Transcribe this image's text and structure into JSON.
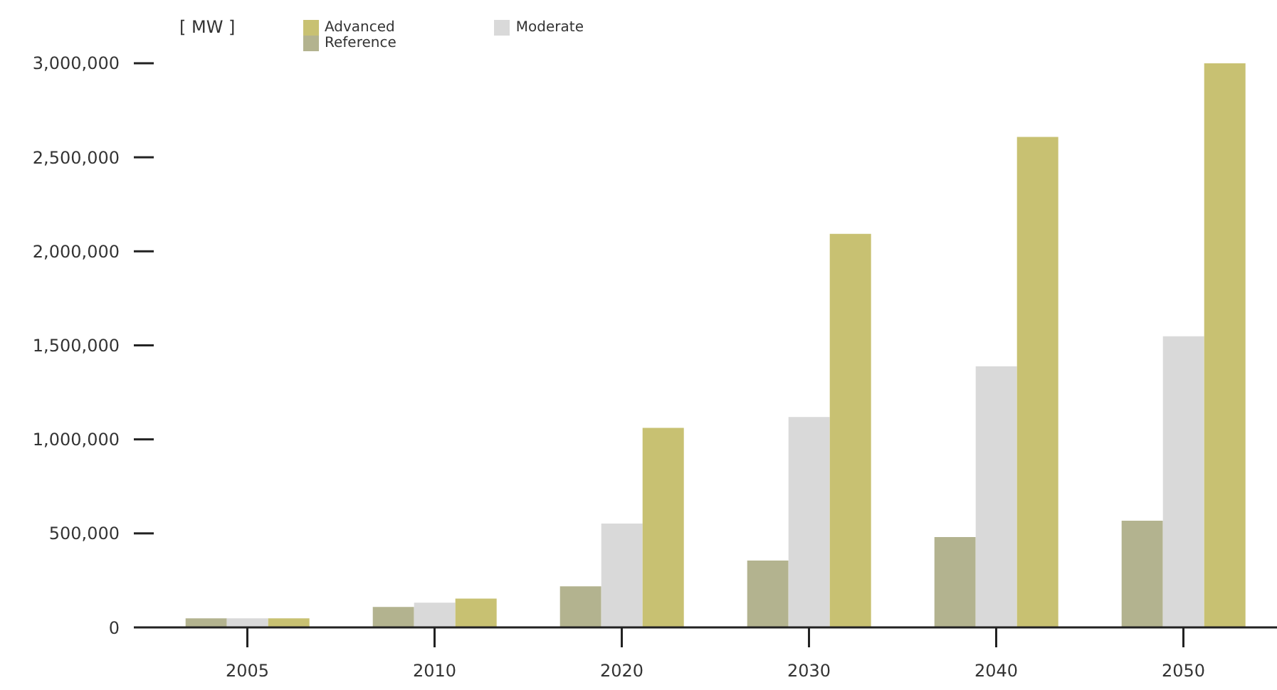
{
  "chart_data": {
    "type": "bar",
    "ylabel": "[ MW ]",
    "categories": [
      "2005",
      "2010",
      "2020",
      "2030",
      "2040",
      "2050"
    ],
    "series": [
      {
        "name": "Reference",
        "color": "#b3b38f",
        "values": [
          48000,
          109000,
          218000,
          356000,
          480000,
          567000
        ]
      },
      {
        "name": "Moderate",
        "color": "#d9d9d9",
        "values": [
          48000,
          131000,
          552000,
          1119000,
          1388000,
          1548000
        ]
      },
      {
        "name": "Advanced",
        "color": "#c8c172",
        "values": [
          48000,
          153000,
          1061000,
          2093000,
          2608000,
          3000000
        ]
      }
    ],
    "ylim": [
      0,
      3000000
    ],
    "yticks": [
      {
        "value": 0,
        "label": "0"
      },
      {
        "value": 500000,
        "label": "500,000"
      },
      {
        "value": 1000000,
        "label": "1,000,000"
      },
      {
        "value": 1500000,
        "label": "1,500,000"
      },
      {
        "value": 2000000,
        "label": "2,000,000"
      },
      {
        "value": 2500000,
        "label": "2,500,000"
      },
      {
        "value": 3000000,
        "label": "3,000,000"
      }
    ],
    "grid": false,
    "legend": "top"
  }
}
